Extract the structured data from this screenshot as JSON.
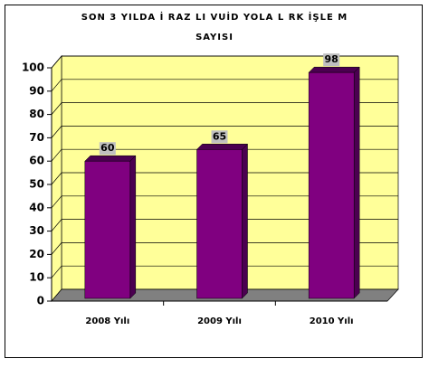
{
  "chart_data": {
    "type": "bar3d",
    "title": [
      "SON 3 YILDA İ RAZ  LI VUİD YOLA  L RK İŞLE M",
      "SAYISI"
    ],
    "categories": [
      "2008 Yılı",
      "2009 Yılı",
      "2010 Yılı"
    ],
    "values": [
      60,
      65,
      98
    ],
    "color": "#800080",
    "side_color": "#4b0050",
    "ylim": [
      0,
      100
    ],
    "yticks": [
      0,
      10,
      20,
      30,
      40,
      50,
      60,
      70,
      80,
      90,
      100
    ],
    "grid": true
  }
}
